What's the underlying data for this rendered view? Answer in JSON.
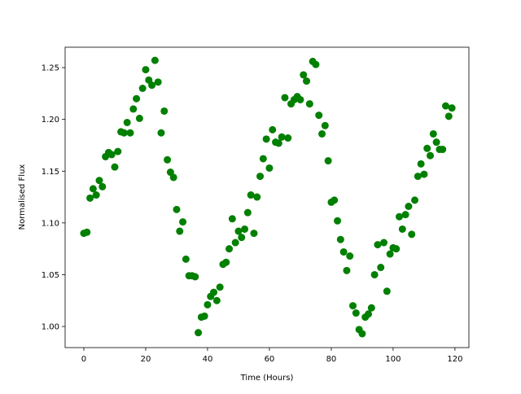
{
  "chart_data": {
    "type": "scatter",
    "xlabel": "Time (Hours)",
    "ylabel": "Normalised Flux",
    "color": "#008000",
    "x": [
      0,
      1,
      2,
      3,
      4,
      5,
      6,
      7,
      8,
      9,
      10,
      11,
      12,
      13,
      14,
      15,
      16,
      17,
      18,
      19,
      20,
      21,
      22,
      23,
      24,
      25,
      26,
      27,
      28,
      29,
      30,
      31,
      32,
      33,
      34,
      35,
      36,
      37,
      38,
      39,
      40,
      41,
      42,
      43,
      44,
      45,
      46,
      47,
      48,
      49,
      50,
      51,
      52,
      53,
      54,
      55,
      56,
      57,
      58,
      59,
      60,
      61,
      62,
      63,
      64,
      65,
      66,
      67,
      68,
      69,
      70,
      71,
      72,
      73,
      74,
      75,
      76,
      77,
      78,
      79,
      80,
      81,
      82,
      83,
      84,
      85,
      86,
      87,
      88,
      89,
      90,
      91,
      92,
      93,
      94,
      95,
      96,
      97,
      98,
      99,
      100,
      101,
      102,
      103,
      104,
      105,
      106,
      107,
      108,
      109,
      110,
      111,
      112,
      113,
      114,
      115,
      116,
      117,
      118,
      119
    ],
    "y": [
      1.09,
      1.091,
      1.124,
      1.133,
      1.127,
      1.141,
      1.135,
      1.164,
      1.168,
      1.166,
      1.154,
      1.169,
      1.188,
      1.187,
      1.197,
      1.187,
      1.21,
      1.22,
      1.201,
      1.23,
      1.248,
      1.238,
      1.233,
      1.257,
      1.236,
      1.187,
      1.208,
      1.161,
      1.149,
      1.144,
      1.113,
      1.092,
      1.101,
      1.065,
      1.049,
      1.049,
      1.048,
      0.994,
      1.009,
      1.01,
      1.021,
      1.029,
      1.033,
      1.025,
      1.038,
      1.06,
      1.062,
      1.075,
      1.104,
      1.081,
      1.092,
      1.086,
      1.094,
      1.11,
      1.127,
      1.09,
      1.125,
      1.145,
      1.162,
      1.181,
      1.153,
      1.19,
      1.178,
      1.177,
      1.183,
      1.221,
      1.182,
      1.215,
      1.219,
      1.222,
      1.219,
      1.243,
      1.237,
      1.215,
      1.256,
      1.253,
      1.204,
      1.186,
      1.194,
      1.16,
      1.12,
      1.122,
      1.102,
      1.084,
      1.072,
      1.054,
      1.068,
      1.02,
      1.013,
      0.997,
      0.993,
      1.009,
      1.012,
      1.018,
      1.05,
      1.079,
      1.057,
      1.081,
      1.034,
      1.07,
      1.076,
      1.075,
      1.106,
      1.094,
      1.108,
      1.116,
      1.089,
      1.122,
      1.145,
      1.157,
      1.147,
      1.172,
      1.165,
      1.186,
      1.178,
      1.171,
      1.171,
      1.213,
      1.203,
      1.211
    ],
    "xlim": [
      -6.05,
      124.5
    ],
    "ylim": [
      0.9796,
      1.2697
    ],
    "xticks": [
      0,
      20,
      40,
      60,
      80,
      100,
      120
    ],
    "yticks": [
      {
        "value": 1,
        "label": "1.00"
      },
      1.05,
      {
        "value": 1.1,
        "label": "1.10"
      },
      1.15,
      {
        "value": 1.2,
        "label": "1.20"
      },
      1.25
    ]
  }
}
